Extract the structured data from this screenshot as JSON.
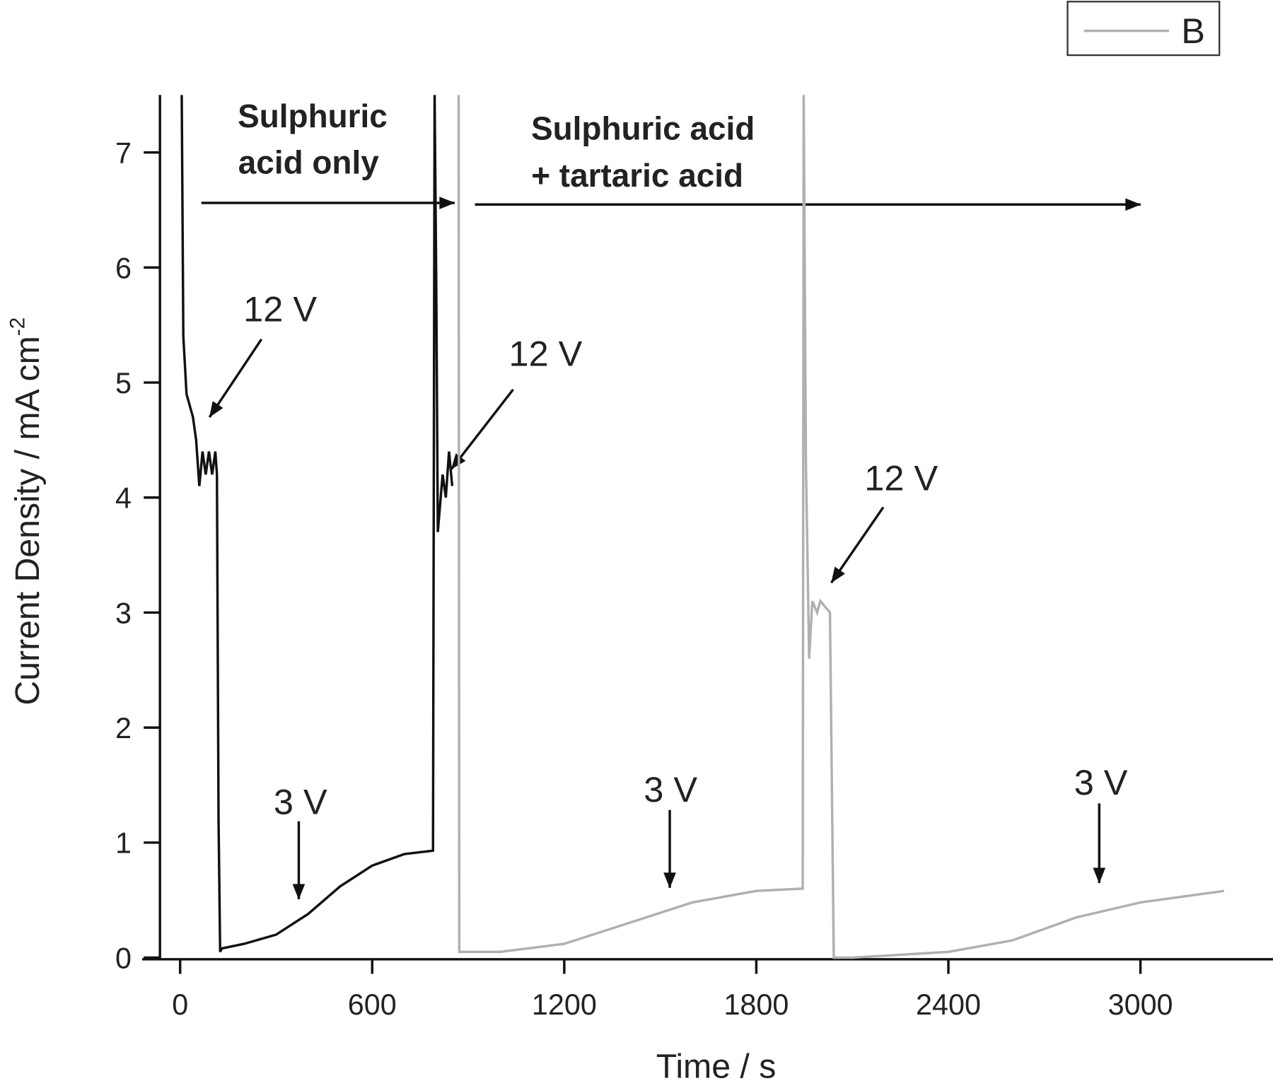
{
  "chart_data": {
    "type": "line",
    "x_label": "Time / s",
    "y_label": "Current Density / mA cm",
    "y_label_superscript": "-2",
    "annotations": [
      "Sulphuric",
      "acid only",
      "Sulphuric acid",
      "+ tartaric acid",
      "12 V",
      "12 V",
      "12 V",
      "3 V",
      "3 V",
      "3 V"
    ],
    "xlim": [
      -63,
      3414
    ],
    "xticks": [
      0,
      600,
      1200,
      1800,
      2400,
      3000
    ],
    "ylim": [
      0,
      7.5
    ],
    "yticks": [
      0,
      1,
      2,
      3,
      4,
      5,
      6,
      7
    ],
    "legend": "top-right",
    "series": [
      {
        "color": "#111111",
        "x": [
          5,
          10,
          20,
          40,
          50,
          60,
          70,
          80,
          90,
          100,
          110,
          115,
          120,
          125,
          130,
          200,
          300,
          400,
          500,
          600,
          700,
          790,
          795,
          800,
          805,
          820,
          830,
          840,
          850
        ],
        "values": [
          7.5,
          5.4,
          4.9,
          4.7,
          4.5,
          4.1,
          4.4,
          4.2,
          4.4,
          4.2,
          4.4,
          4.2,
          1.2,
          0.05,
          0.08,
          0.12,
          0.2,
          0.38,
          0.62,
          0.8,
          0.9,
          0.93,
          7.5,
          5.9,
          3.7,
          4.2,
          4.0,
          4.4,
          4.1
        ]
      },
      {
        "name": "B",
        "color": "#b0b0b0",
        "x": [
          870,
          872,
          1000,
          1200,
          1400,
          1600,
          1800,
          1945,
          1948,
          1955,
          1965,
          1975,
          1990,
          2000,
          2030,
          2042,
          2100,
          2400,
          2600,
          2800,
          3000,
          3261
        ],
        "values": [
          7.5,
          0.05,
          0.05,
          0.12,
          0.3,
          0.48,
          0.58,
          0.6,
          7.5,
          4.3,
          2.6,
          3.1,
          3.0,
          3.1,
          3.0,
          0.0,
          0.0,
          0.05,
          0.15,
          0.35,
          0.48,
          0.58
        ]
      }
    ]
  }
}
